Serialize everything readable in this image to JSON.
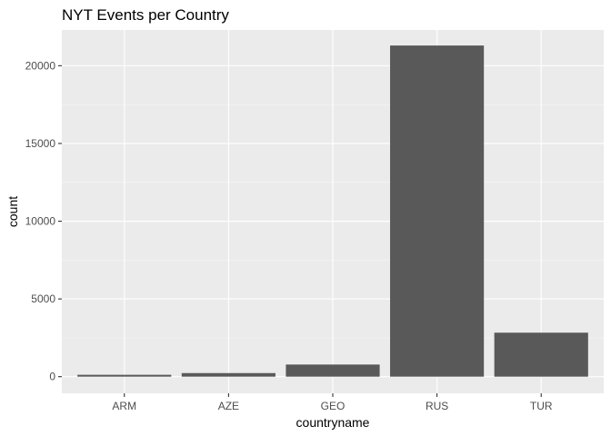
{
  "chart_data": {
    "type": "bar",
    "title": "NYT Events per Country",
    "xlabel": "countryname",
    "ylabel": "count",
    "categories": [
      "ARM",
      "AZE",
      "GEO",
      "RUS",
      "TUR"
    ],
    "values": [
      120,
      230,
      780,
      21300,
      2830
    ],
    "ylim": [
      -1070,
      22300
    ],
    "yticks": [
      0,
      5000,
      10000,
      15000,
      20000
    ],
    "grid": true,
    "legend": "none",
    "colors": {
      "panel_background": "#ebebeb",
      "grid_major": "#ffffff",
      "grid_minor": "#f5f5f5",
      "bar_fill": "#595959",
      "tick_mark": "#333333"
    }
  }
}
